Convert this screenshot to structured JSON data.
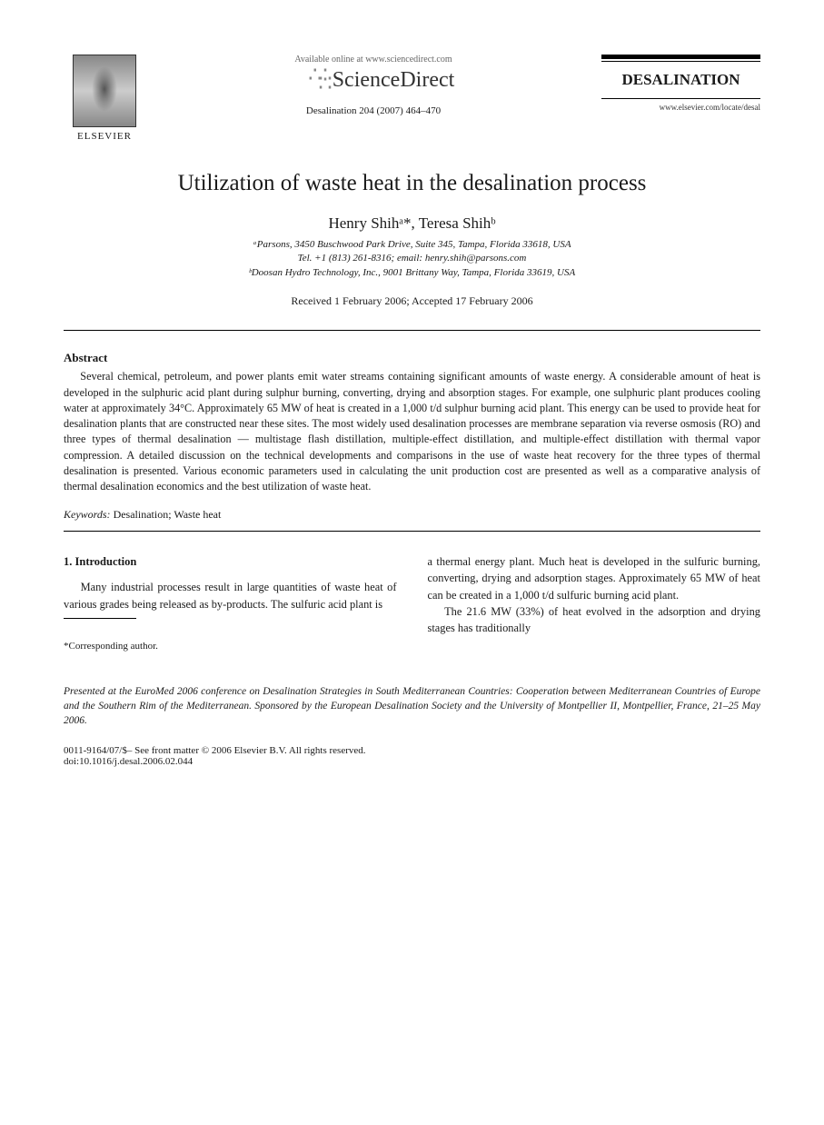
{
  "header": {
    "publisher_name": "ELSEVIER",
    "available_online": "Available online at www.sciencedirect.com",
    "sciencedirect": "ScienceDirect",
    "citation": "Desalination 204 (2007) 464–470",
    "journal_name": "DESALINATION",
    "journal_url": "www.elsevier.com/locate/desal"
  },
  "title": "Utilization of waste heat in the desalination process",
  "authors_line": "Henry Shihᵃ*, Teresa Shihᵇ",
  "affiliations": {
    "a": "ᵃParsons, 3450 Buschwood Park Drive, Suite 345, Tampa, Florida 33618, USA",
    "tel": "Tel. +1 (813) 261-8316; email: henry.shih@parsons.com",
    "b": "ᵇDoosan Hydro Technology, Inc., 9001 Brittany Way, Tampa, Florida 33619, USA"
  },
  "dates": "Received 1 February 2006; Accepted 17 February 2006",
  "abstract": {
    "heading": "Abstract",
    "body": "Several chemical, petroleum, and power plants emit water streams containing significant amounts of waste energy. A considerable amount of heat is developed in the sulphuric acid plant during sulphur burning, converting, drying and absorption stages. For example, one sulphuric plant produces cooling water at approximately 34°C. Approximately 65 MW of heat is created in a 1,000 t/d sulphur burning acid plant. This energy can be used to provide heat for desalination plants that are constructed near these sites. The most widely used desalination processes are membrane separation via reverse osmosis (RO) and three types of thermal desalination — multistage flash distillation, multiple-effect distillation, and multiple-effect distillation with thermal vapor compression. A detailed discussion on the technical developments and comparisons in the use of waste heat recovery for the three types of thermal desalination is presented. Various economic parameters used in calculating the unit production cost are presented as well as a comparative analysis of thermal desalination economics and the best utilization of waste heat."
  },
  "keywords": {
    "label": "Keywords:",
    "text": " Desalination; Waste heat"
  },
  "intro": {
    "heading": "1. Introduction",
    "left_p1": "Many industrial processes result in large quantities of waste heat of various grades being released as by-products. The sulfuric acid plant is",
    "right_p1": "a thermal energy plant. Much heat is developed in the sulfuric burning, converting, drying and adsorption stages. Approximately 65 MW of heat can be created in a 1,000 t/d sulfuric burning acid plant.",
    "right_p2": "The 21.6 MW (33%) of heat evolved in the adsorption and drying stages has traditionally"
  },
  "corresponding": "*Corresponding author.",
  "conference_note": "Presented at the EuroMed 2006 conference on Desalination Strategies in South Mediterranean Countries: Cooperation between Mediterranean Countries of Europe and the Southern Rim of the Mediterranean.  Sponsored by the European Desalination Society and the University of Montpellier II, Montpellier, France, 21–25 May 2006.",
  "copyright": "0011-9164/07/$– See front matter © 2006 Elsevier B.V. All rights reserved.",
  "doi": "doi:10.1016/j.desal.2006.02.044"
}
